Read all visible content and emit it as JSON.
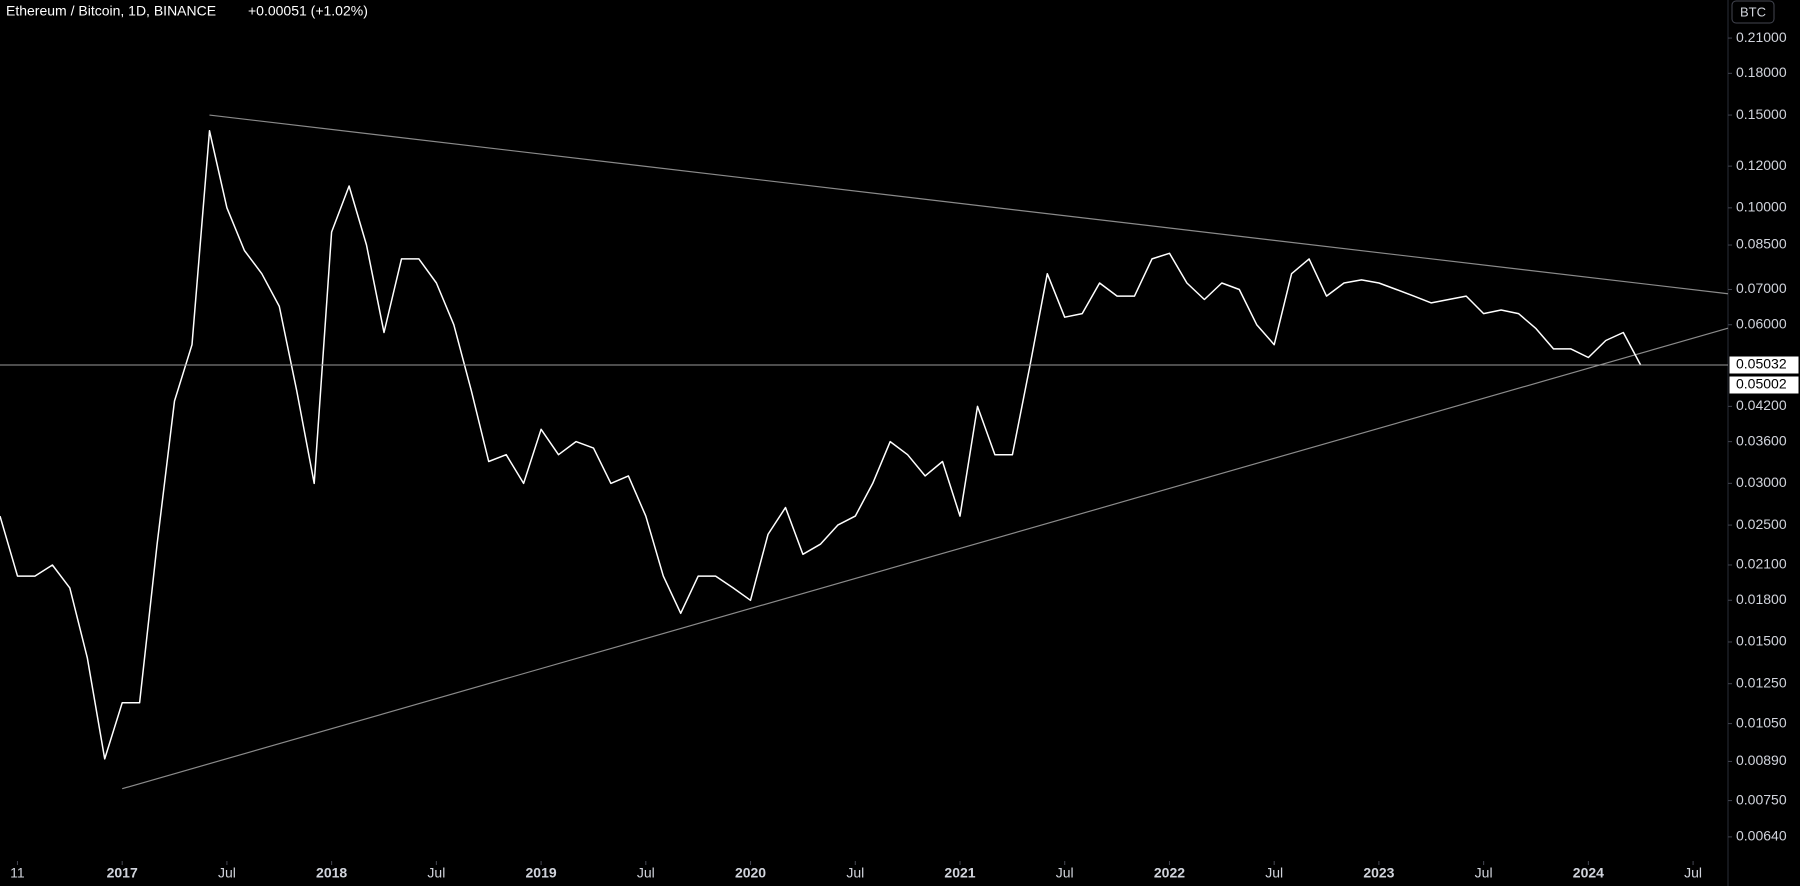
{
  "chart_data": {
    "type": "line",
    "title": "Ethereum / Bitcoin, 1D, BINANCE",
    "change": "+0.00051 (+1.02%)",
    "currency": "BTC",
    "log_scale": true,
    "color": "#ffffff",
    "x": [
      "2016-06",
      "2016-07",
      "2016-08",
      "2016-09",
      "2016-10",
      "2016-11",
      "2016-12",
      "2017-01",
      "2017-02",
      "2017-03",
      "2017-04",
      "2017-05",
      "2017-06",
      "2017-07",
      "2017-08",
      "2017-09",
      "2017-10",
      "2017-11",
      "2017-12",
      "2018-01",
      "2018-02",
      "2018-03",
      "2018-04",
      "2018-05",
      "2018-06",
      "2018-07",
      "2018-08",
      "2018-09",
      "2018-10",
      "2018-11",
      "2018-12",
      "2019-01",
      "2019-02",
      "2019-03",
      "2019-04",
      "2019-05",
      "2019-06",
      "2019-07",
      "2019-08",
      "2019-09",
      "2019-10",
      "2019-11",
      "2019-12",
      "2020-01",
      "2020-02",
      "2020-03",
      "2020-04",
      "2020-05",
      "2020-06",
      "2020-07",
      "2020-08",
      "2020-09",
      "2020-10",
      "2020-11",
      "2020-12",
      "2021-01",
      "2021-02",
      "2021-03",
      "2021-04",
      "2021-05",
      "2021-06",
      "2021-07",
      "2021-08",
      "2021-09",
      "2021-10",
      "2021-11",
      "2021-12",
      "2022-01",
      "2022-02",
      "2022-03",
      "2022-04",
      "2022-05",
      "2022-06",
      "2022-07",
      "2022-08",
      "2022-09",
      "2022-10",
      "2022-11",
      "2022-12",
      "2023-01",
      "2023-02",
      "2023-03",
      "2023-04",
      "2023-05",
      "2023-06",
      "2023-07",
      "2023-08",
      "2023-09",
      "2023-10",
      "2023-11",
      "2023-12",
      "2024-01",
      "2024-02",
      "2024-03",
      "2024-04"
    ],
    "values": [
      0.026,
      0.02,
      0.02,
      0.021,
      0.019,
      0.014,
      0.009,
      0.0115,
      0.0115,
      0.023,
      0.043,
      0.055,
      0.14,
      0.1,
      0.083,
      0.075,
      0.065,
      0.045,
      0.03,
      0.09,
      0.11,
      0.085,
      0.058,
      0.08,
      0.08,
      0.072,
      0.06,
      0.045,
      0.033,
      0.034,
      0.03,
      0.038,
      0.034,
      0.036,
      0.035,
      0.03,
      0.031,
      0.026,
      0.02,
      0.017,
      0.02,
      0.02,
      0.019,
      0.018,
      0.024,
      0.027,
      0.022,
      0.023,
      0.025,
      0.026,
      0.03,
      0.036,
      0.034,
      0.031,
      0.033,
      0.026,
      0.042,
      0.034,
      0.034,
      0.05,
      0.075,
      0.062,
      0.063,
      0.072,
      0.068,
      0.068,
      0.08,
      0.082,
      0.072,
      0.067,
      0.072,
      0.07,
      0.06,
      0.055,
      0.075,
      0.08,
      0.068,
      0.072,
      0.073,
      0.072,
      0.07,
      0.068,
      0.066,
      0.067,
      0.068,
      0.063,
      0.064,
      0.063,
      0.059,
      0.054,
      0.054,
      0.052,
      0.056,
      0.058,
      0.0503
    ],
    "xlim": [
      "2016-06",
      "2024-09"
    ],
    "xticks": [
      {
        "value": "2016-07",
        "label": "11"
      },
      {
        "value": "2017-01",
        "label": "2017"
      },
      {
        "value": "2017-07",
        "label": "Jul"
      },
      {
        "value": "2018-01",
        "label": "2018"
      },
      {
        "value": "2018-07",
        "label": "Jul"
      },
      {
        "value": "2019-01",
        "label": "2019"
      },
      {
        "value": "2019-07",
        "label": "Jul"
      },
      {
        "value": "2020-01",
        "label": "2020"
      },
      {
        "value": "2020-07",
        "label": "Jul"
      },
      {
        "value": "2021-01",
        "label": "2021"
      },
      {
        "value": "2021-07",
        "label": "Jul"
      },
      {
        "value": "2022-01",
        "label": "2022"
      },
      {
        "value": "2022-07",
        "label": "Jul"
      },
      {
        "value": "2023-01",
        "label": "2023"
      },
      {
        "value": "2023-07",
        "label": "Jul"
      },
      {
        "value": "2024-01",
        "label": "2024"
      },
      {
        "value": "2024-07",
        "label": "Jul"
      }
    ],
    "ylim": [
      0.00576,
      0.248
    ],
    "yticks": [
      {
        "value": 0.21,
        "label": "0.21000"
      },
      {
        "value": 0.18,
        "label": "0.18000"
      },
      {
        "value": 0.15,
        "label": "0.15000"
      },
      {
        "value": 0.12,
        "label": "0.12000"
      },
      {
        "value": 0.1,
        "label": "0.10000"
      },
      {
        "value": 0.085,
        "label": "0.08500"
      },
      {
        "value": 0.07,
        "label": "0.07000"
      },
      {
        "value": 0.06,
        "label": "0.06000"
      },
      {
        "value": 0.042,
        "label": "0.04200"
      },
      {
        "value": 0.036,
        "label": "0.03600"
      },
      {
        "value": 0.03,
        "label": "0.03000"
      },
      {
        "value": 0.025,
        "label": "0.02500"
      },
      {
        "value": 0.021,
        "label": "0.02100"
      },
      {
        "value": 0.018,
        "label": "0.01800"
      },
      {
        "value": 0.015,
        "label": "0.01500"
      },
      {
        "value": 0.0125,
        "label": "0.01250"
      },
      {
        "value": 0.0105,
        "label": "0.01050"
      },
      {
        "value": 0.0089,
        "label": "0.00890"
      },
      {
        "value": 0.0075,
        "label": "0.00750"
      },
      {
        "value": 0.0064,
        "label": "0.00640"
      }
    ],
    "price_tags": [
      {
        "value": 0.05032,
        "label": "0.05032"
      },
      {
        "value": 0.05002,
        "label": "0.05002"
      }
    ],
    "trend_lines": [
      {
        "x": [
          "2017-06",
          "2024-09"
        ],
        "values": [
          0.15,
          0.0687
        ]
      },
      {
        "x": [
          "2017-01",
          "2024-09"
        ],
        "values": [
          0.0079,
          0.0591
        ]
      }
    ]
  }
}
